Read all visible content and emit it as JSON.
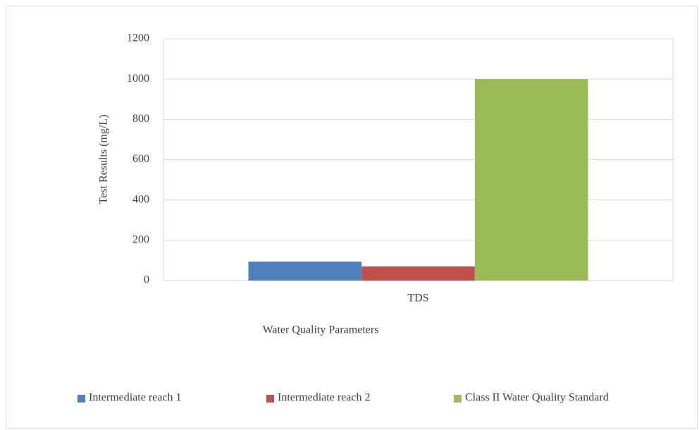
{
  "chart_data": {
    "type": "bar",
    "categories": [
      "TDS"
    ],
    "series": [
      {
        "name": "Intermediate reach 1",
        "color": "#4f81bd",
        "values": [
          94
        ]
      },
      {
        "name": "Intermediate reach 2",
        "color": "#c0504d",
        "values": [
          70
        ]
      },
      {
        "name": "Class II Water Quality Standard",
        "color": "#9bbb59",
        "values": [
          1000
        ]
      }
    ],
    "x_label": "Water Quality Parameters",
    "y_label": "Test Results (mg/L)",
    "ylim": [
      0,
      1200
    ],
    "yticks": [
      0,
      200,
      400,
      600,
      800,
      1000,
      1200
    ],
    "grid": true,
    "legend": "bottom"
  }
}
